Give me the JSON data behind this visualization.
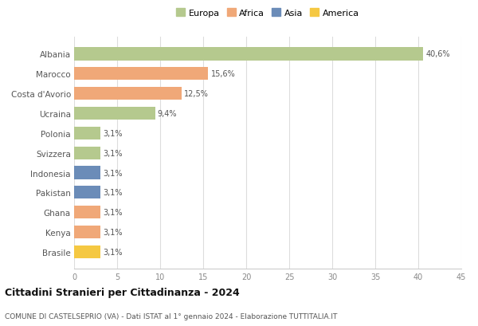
{
  "categories": [
    "Albania",
    "Marocco",
    "Costa d'Avorio",
    "Ucraina",
    "Polonia",
    "Svizzera",
    "Indonesia",
    "Pakistan",
    "Ghana",
    "Kenya",
    "Brasile"
  ],
  "values": [
    40.6,
    15.6,
    12.5,
    9.4,
    3.1,
    3.1,
    3.1,
    3.1,
    3.1,
    3.1,
    3.1
  ],
  "colors": [
    "#b5c98e",
    "#f0a878",
    "#f0a878",
    "#b5c98e",
    "#b5c98e",
    "#b5c98e",
    "#6b8cb8",
    "#6b8cb8",
    "#f0a878",
    "#f0a878",
    "#f5c842"
  ],
  "labels": [
    "40,6%",
    "15,6%",
    "12,5%",
    "9,4%",
    "3,1%",
    "3,1%",
    "3,1%",
    "3,1%",
    "3,1%",
    "3,1%",
    "3,1%"
  ],
  "legend_labels": [
    "Europa",
    "Africa",
    "Asia",
    "America"
  ],
  "legend_colors": [
    "#b5c98e",
    "#f0a878",
    "#6b8cb8",
    "#f5c842"
  ],
  "xlim": [
    0,
    45
  ],
  "xticks": [
    0,
    5,
    10,
    15,
    20,
    25,
    30,
    35,
    40,
    45
  ],
  "title": "Cittadini Stranieri per Cittadinanza - 2024",
  "subtitle": "COMUNE DI CASTELSEPRIO (VA) - Dati ISTAT al 1° gennaio 2024 - Elaborazione TUTTITALIA.IT",
  "bg_color": "#ffffff",
  "grid_color": "#dddddd",
  "bar_height": 0.65
}
